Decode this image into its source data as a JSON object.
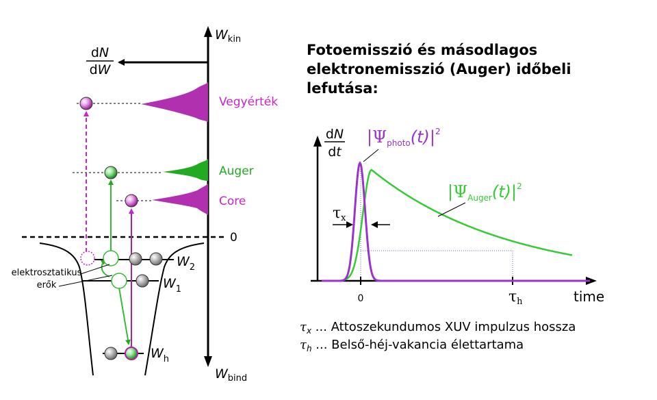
{
  "title": {
    "line1": "Fotoemisszió és másodlagos",
    "line2": "elektronemisszió (Auger) időbeli",
    "line3": "lefutása:"
  },
  "energy_diagram": {
    "axis_top_label": "W",
    "axis_top_sub": "kin",
    "axis_bottom_label": "W",
    "axis_bottom_sub": "bind",
    "dndw_num": "dN",
    "dndw_den": "dW",
    "zero_label": "0",
    "peaks": [
      {
        "label": "Vegyérték",
        "color": "#cc2ccc"
      },
      {
        "label": "Auger",
        "color": "#22aa22"
      },
      {
        "label": "Core",
        "color": "#cc2ccc"
      }
    ],
    "levels": [
      {
        "label": "W",
        "sub": "2"
      },
      {
        "label": "W",
        "sub": "1"
      },
      {
        "label": "W",
        "sub": "h"
      }
    ],
    "force_label_line1": "elektrosztatikus",
    "force_label_line2": "erők"
  },
  "time_plot": {
    "y_num": "dN",
    "y_den": "dt",
    "x_label": "time",
    "zero_tick": "0",
    "tau_x_symbol": "τ",
    "tau_x_sub": "x",
    "tau_h_symbol": "τ",
    "tau_h_sub": "h",
    "photo_label": {
      "open": "|Ψ",
      "sub": "photo",
      "arg": "(t)|",
      "sup": "2"
    },
    "auger_label": {
      "open": "|Ψ",
      "sub": "Auger",
      "arg": "(t)|",
      "sup": "2"
    }
  },
  "legend": [
    {
      "symbol": "τ",
      "sub": "x",
      "text": " ... Attoszekundumos  XUV  impulzus  hossza"
    },
    {
      "symbol": "τ",
      "sub": "h",
      "text": " ... Belső-héj-vakancia élettartama"
    }
  ],
  "colors": {
    "photo": "#9a33cc",
    "auger": "#33cc33",
    "magenta": "#cc22cc",
    "green": "#22aa22",
    "axis": "#000000",
    "dotted": "#6666aa"
  }
}
